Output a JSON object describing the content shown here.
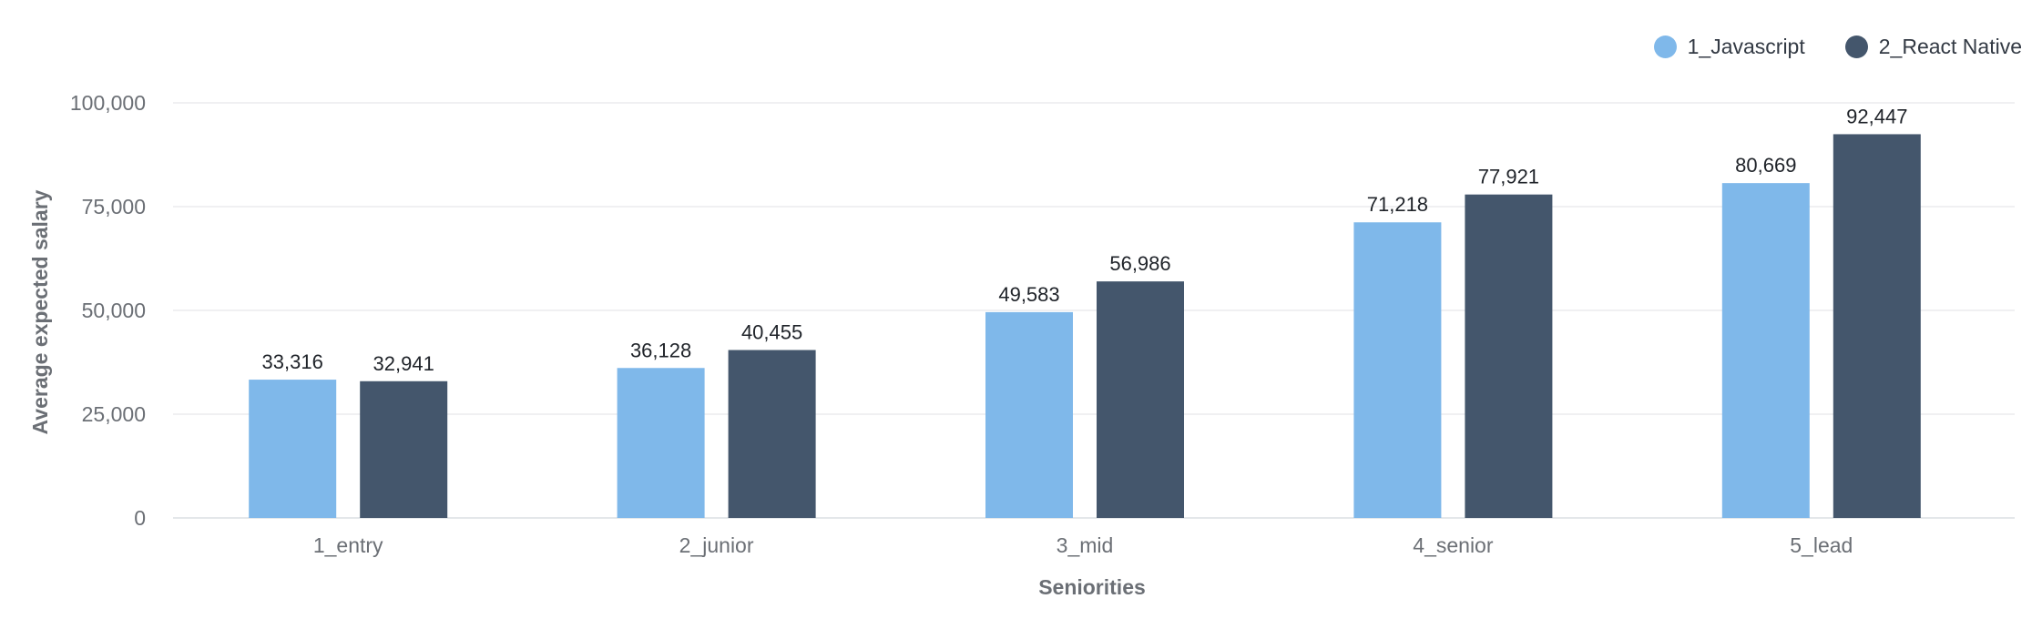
{
  "chart_data": {
    "type": "bar",
    "xlabel": "Seniorities",
    "ylabel": "Average expected salary",
    "categories": [
      "1_entry",
      "2_junior",
      "3_mid",
      "4_senior",
      "5_lead"
    ],
    "series": [
      {
        "name": "1_Javascript",
        "color": "#7fb8ea",
        "values": [
          33316,
          36128,
          49583,
          71218,
          80669
        ],
        "labels": [
          "33,316",
          "36,128",
          "49,583",
          "71,218",
          "80,669"
        ]
      },
      {
        "name": "2_React Native",
        "color": "#44566c",
        "values": [
          32941,
          40455,
          56986,
          77921,
          92447
        ],
        "labels": [
          "32,941",
          "40,455",
          "56,986",
          "77,921",
          "92,447"
        ]
      }
    ],
    "ylim": [
      0,
      100000
    ],
    "yticks": [
      0,
      25000,
      50000,
      75000,
      100000
    ],
    "ytick_labels": [
      "0",
      "25,000",
      "50,000",
      "75,000",
      "100,000"
    ],
    "grid": true,
    "legend_position": "top-right"
  }
}
